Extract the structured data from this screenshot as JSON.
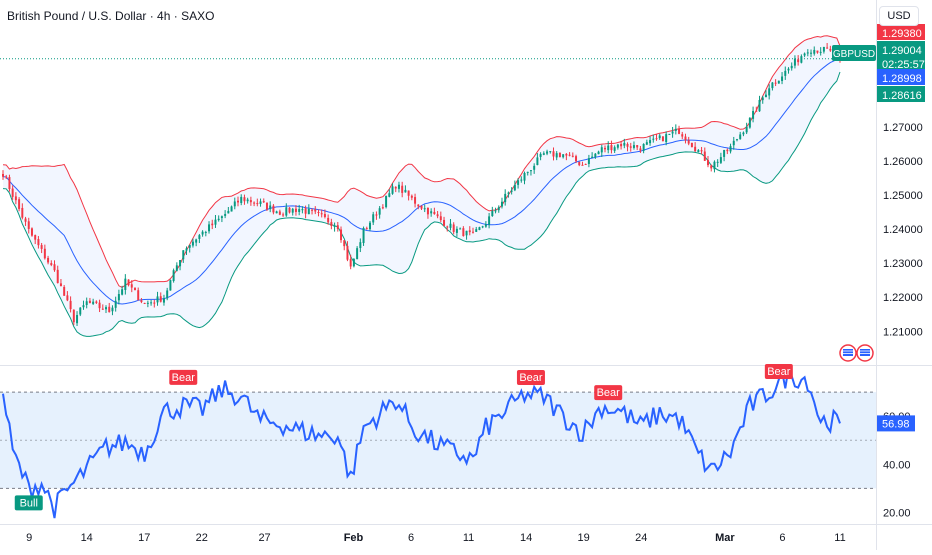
{
  "header": {
    "title": "British Pound / U.S. Dollar · 4h · SAXO",
    "currency_button": "USD"
  },
  "price_axis": {
    "ticks": [
      "1.27000",
      "1.26000",
      "1.25000",
      "1.24000",
      "1.23000",
      "1.22000",
      "1.21000"
    ]
  },
  "price_labels": [
    {
      "name": "bb-upper-price-label",
      "text": "1.29380",
      "color": "#f23645",
      "value": 1.2938
    },
    {
      "name": "symbol-price-label",
      "text": "GBPUSD",
      "value": 1.29004,
      "color": "#089981"
    },
    {
      "name": "last-price-label",
      "text": "1.29004",
      "value": 1.29004,
      "color": "#089981"
    },
    {
      "name": "countdown-label",
      "text": "02:25:57",
      "value": 1.29004,
      "color": "#089981"
    },
    {
      "name": "bb-basis-price-label",
      "text": "1.28998",
      "color": "#2962ff",
      "value": 1.28998
    },
    {
      "name": "bb-lower-price-label",
      "text": "1.28616",
      "color": "#089981",
      "value": 1.28616
    }
  ],
  "rsi_axis": {
    "ticks": [
      "60.00",
      "40.00",
      "20.00"
    ],
    "value_label": "56.98",
    "band_upper": 70,
    "band_middle": 50,
    "band_lower": 30
  },
  "signals": [
    {
      "text": "Bull",
      "type": "bull",
      "bar": 8
    },
    {
      "text": "Bear",
      "type": "bear",
      "bar": 56
    },
    {
      "text": "Bear",
      "type": "bear",
      "bar": 164
    },
    {
      "text": "Bear",
      "type": "bear",
      "bar": 188
    },
    {
      "text": "Bear",
      "type": "bear",
      "bar": 241
    }
  ],
  "time_axis": {
    "labels": [
      "9",
      "14",
      "17",
      "22",
      "27",
      "Feb",
      "6",
      "11",
      "14",
      "19",
      "24",
      "Mar",
      "6",
      "11"
    ]
  },
  "colors": {
    "up": "#089981",
    "down": "#f23645",
    "bb_upper": "#f23645",
    "bb_lower": "#089981",
    "bb_basis": "#2962ff",
    "rsi_line": "#2962ff",
    "bull": "#089981",
    "bear": "#f23645"
  },
  "chart_data": {
    "type": "candlestick",
    "symbol": "GBPUSD",
    "interval": "4h",
    "ylim": [
      1.2045,
      1.2985
    ],
    "rsi_ylim": [
      16,
      80
    ],
    "anchors": [
      [
        0,
        1.2565
      ],
      [
        8,
        1.2395
      ],
      [
        16,
        1.2275
      ],
      [
        22,
        1.2135
      ],
      [
        26,
        1.2185
      ],
      [
        33,
        1.216
      ],
      [
        38,
        1.2245
      ],
      [
        44,
        1.218
      ],
      [
        50,
        1.22
      ],
      [
        56,
        1.234
      ],
      [
        62,
        1.239
      ],
      [
        68,
        1.2435
      ],
      [
        74,
        1.249
      ],
      [
        80,
        1.2475
      ],
      [
        86,
        1.245
      ],
      [
        92,
        1.246
      ],
      [
        98,
        1.244
      ],
      [
        104,
        1.241
      ],
      [
        108,
        1.2285
      ],
      [
        112,
        1.2395
      ],
      [
        118,
        1.2475
      ],
      [
        122,
        1.253
      ],
      [
        128,
        1.248
      ],
      [
        134,
        1.244
      ],
      [
        140,
        1.24
      ],
      [
        146,
        1.238
      ],
      [
        150,
        1.242
      ],
      [
        156,
        1.2495
      ],
      [
        162,
        1.256
      ],
      [
        168,
        1.262
      ],
      [
        174,
        1.262
      ],
      [
        180,
        1.259
      ],
      [
        186,
        1.2635
      ],
      [
        192,
        1.265
      ],
      [
        198,
        1.264
      ],
      [
        204,
        1.2665
      ],
      [
        210,
        1.269
      ],
      [
        216,
        1.263
      ],
      [
        220,
        1.2585
      ],
      [
        226,
        1.264
      ],
      [
        232,
        1.272
      ],
      [
        238,
        1.282
      ],
      [
        244,
        1.287
      ],
      [
        250,
        1.293
      ],
      [
        256,
        1.2925
      ],
      [
        260,
        1.29
      ]
    ],
    "rsi_anchors": [
      [
        0,
        70
      ],
      [
        3,
        45
      ],
      [
        8,
        30
      ],
      [
        12,
        32
      ],
      [
        16,
        22
      ],
      [
        20,
        29
      ],
      [
        26,
        38
      ],
      [
        32,
        47
      ],
      [
        38,
        49
      ],
      [
        44,
        45
      ],
      [
        50,
        62
      ],
      [
        56,
        64
      ],
      [
        62,
        63
      ],
      [
        68,
        71
      ],
      [
        74,
        68
      ],
      [
        80,
        58
      ],
      [
        86,
        57
      ],
      [
        92,
        54
      ],
      [
        98,
        52
      ],
      [
        104,
        52
      ],
      [
        108,
        34
      ],
      [
        112,
        55
      ],
      [
        118,
        62
      ],
      [
        122,
        67
      ],
      [
        128,
        54
      ],
      [
        134,
        49
      ],
      [
        140,
        45
      ],
      [
        146,
        42
      ],
      [
        150,
        55
      ],
      [
        156,
        62
      ],
      [
        162,
        69
      ],
      [
        168,
        68
      ],
      [
        174,
        60
      ],
      [
        180,
        53
      ],
      [
        186,
        64
      ],
      [
        192,
        62
      ],
      [
        198,
        56
      ],
      [
        204,
        61
      ],
      [
        210,
        59
      ],
      [
        216,
        44
      ],
      [
        220,
        37
      ],
      [
        226,
        45
      ],
      [
        232,
        64
      ],
      [
        238,
        70
      ],
      [
        244,
        77
      ],
      [
        250,
        75
      ],
      [
        254,
        58
      ],
      [
        260,
        58
      ]
    ],
    "bars": 261,
    "last_price": 1.29004,
    "bb_upper_last": 1.2938,
    "bb_basis_last": 1.28998,
    "bb_lower_last": 1.28616,
    "rsi_last": 56.98
  }
}
